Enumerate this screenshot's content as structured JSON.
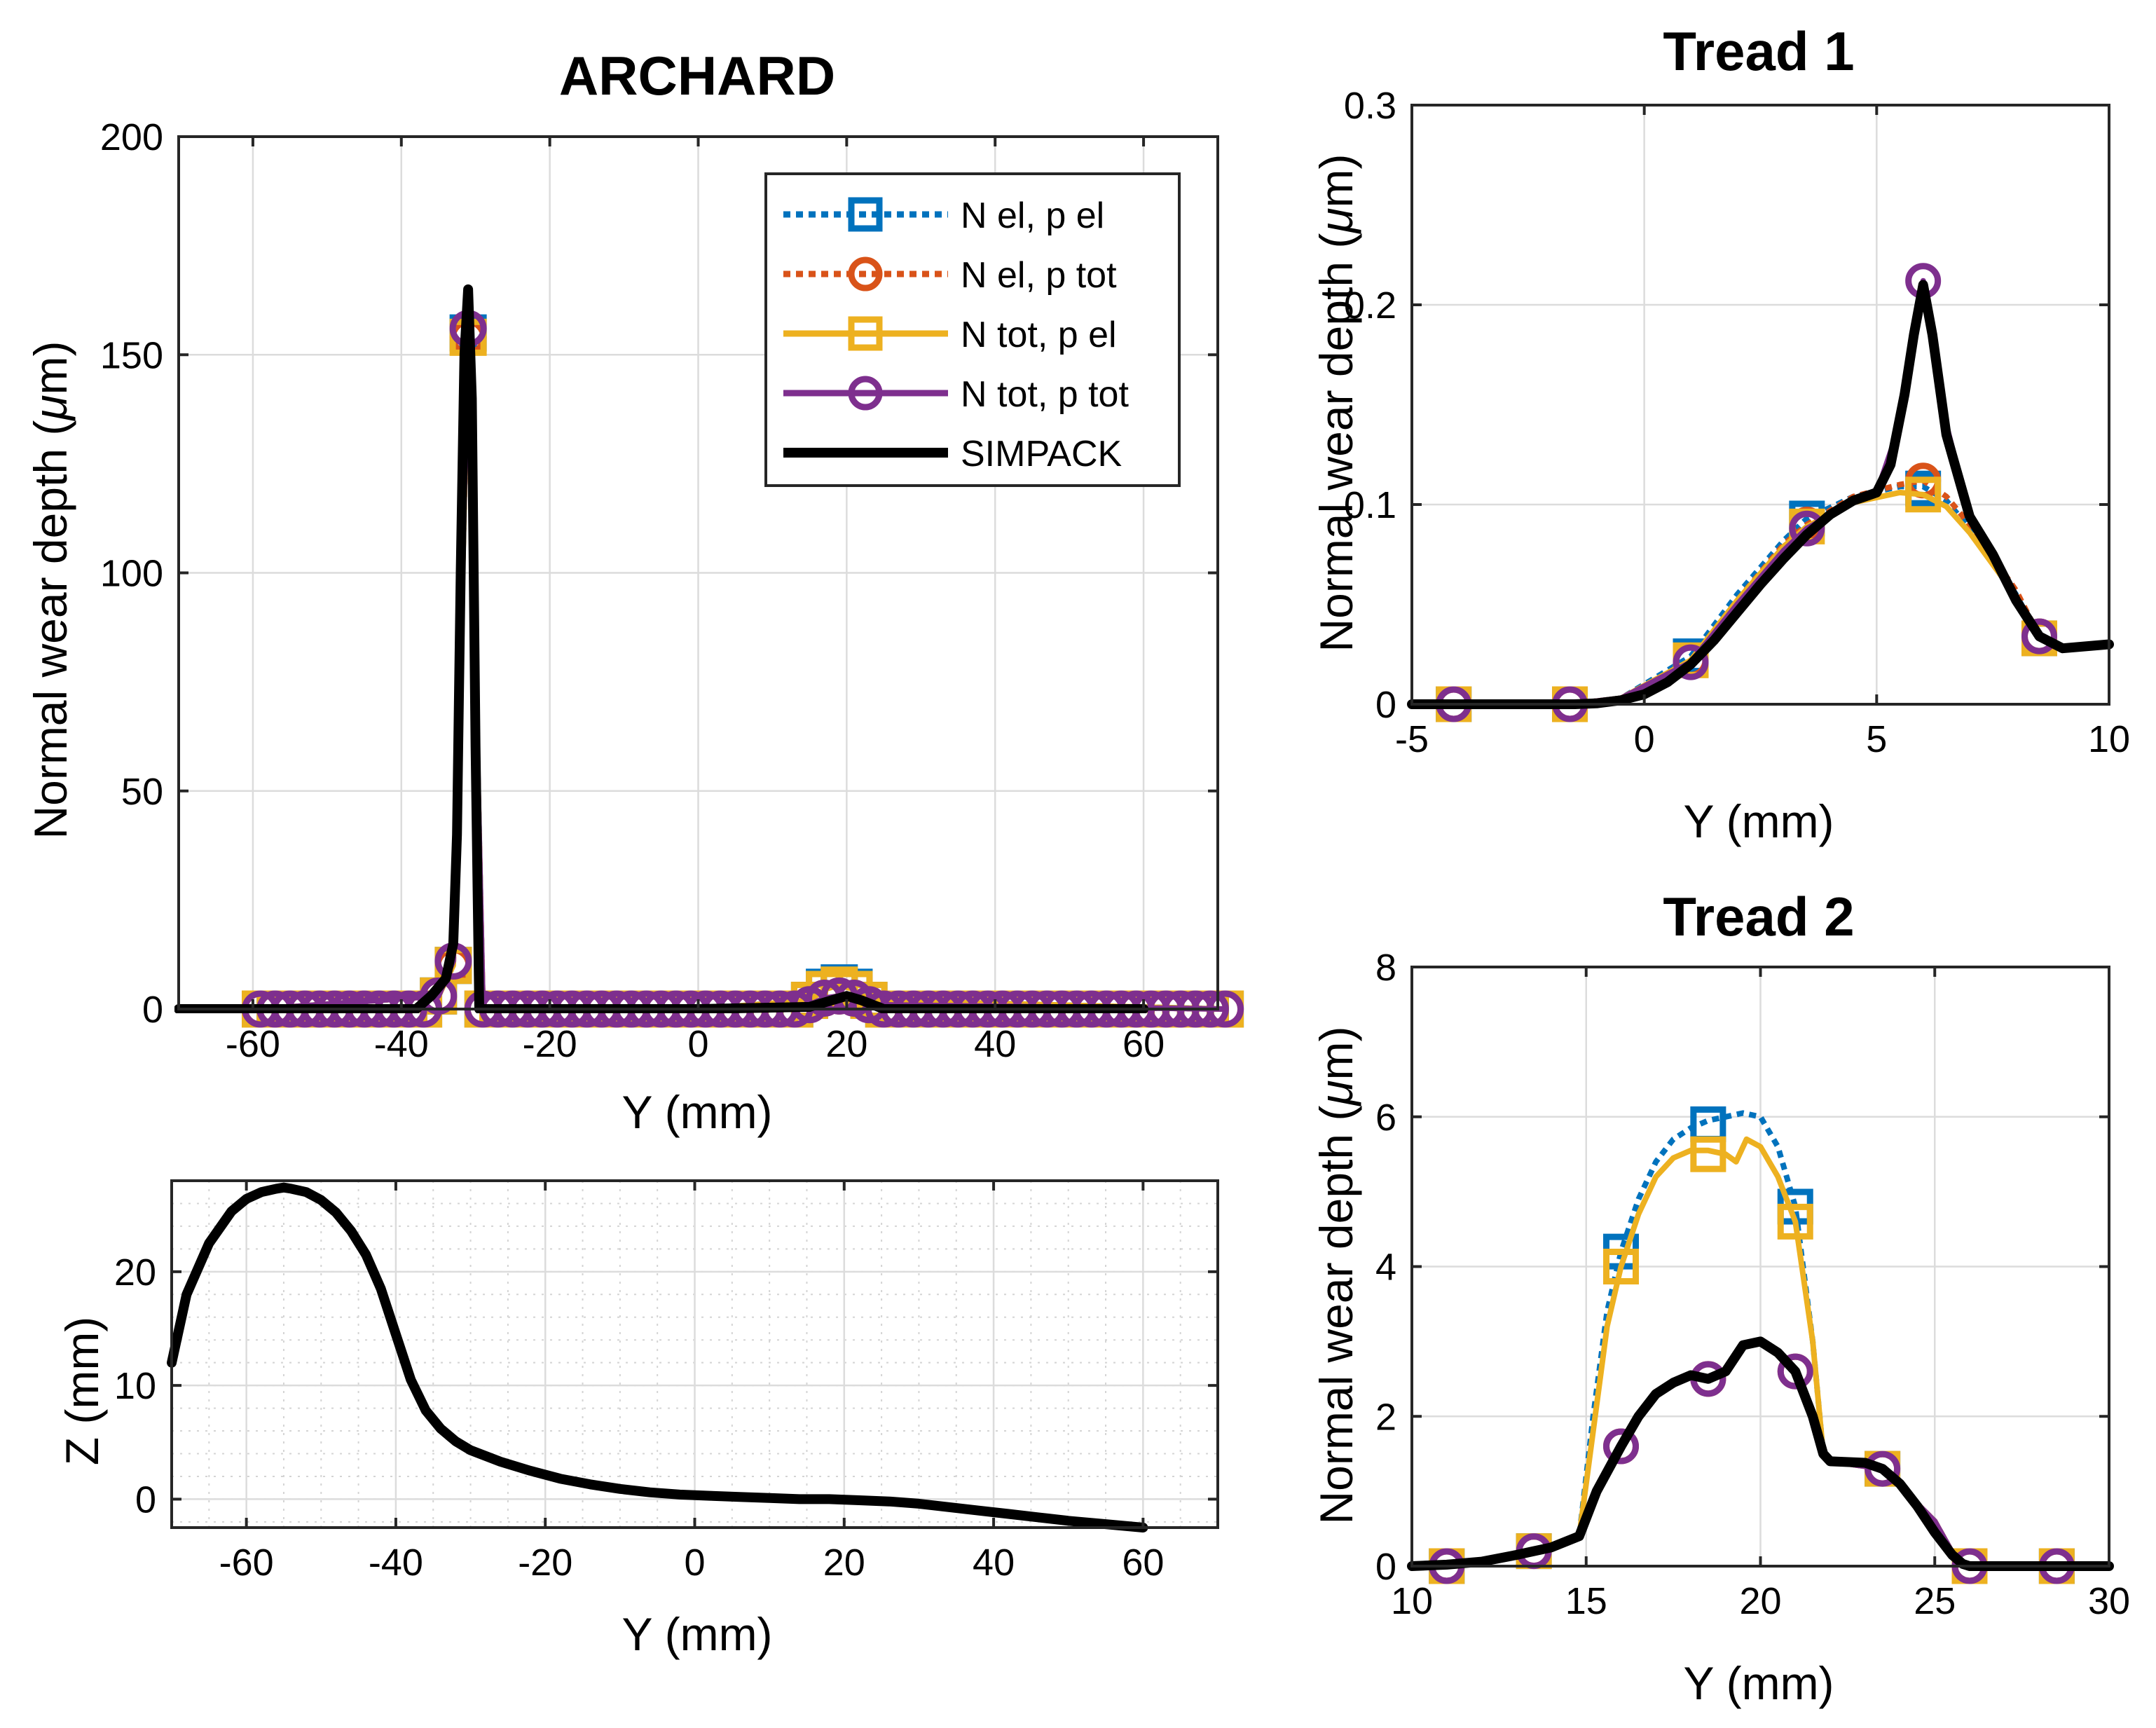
{
  "chart_data": [
    {
      "id": "archard",
      "type": "line",
      "title": "ARCHARD",
      "xlabel": "Y (mm)",
      "ylabel_prefix": "Normal wear depth (",
      "ylabel_symbol": "μ",
      "ylabel_suffix": "m)",
      "xlim": [
        -70,
        70
      ],
      "ylim": [
        0,
        200
      ],
      "xticks": [
        -60,
        -40,
        -20,
        0,
        20,
        40,
        60
      ],
      "yticks": [
        0,
        50,
        100,
        150,
        200
      ],
      "grid": true,
      "legend": {
        "position": "top-right",
        "entries": [
          "N el, p el",
          "N el, p tot",
          "N tot, p el",
          "N tot, p tot",
          "SIMPACK"
        ]
      },
      "series": [
        {
          "name": "N el, p el",
          "color": "#0072BD",
          "style": "dotted",
          "marker": "square",
          "x": [
            -59,
            -35,
            -33,
            -31,
            -29,
            0,
            15,
            17,
            19,
            21,
            23,
            71
          ],
          "y": [
            0,
            3,
            10,
            155,
            0,
            0,
            2,
            5,
            6,
            5,
            2,
            0
          ]
        },
        {
          "name": "N el, p tot",
          "color": "#D95319",
          "style": "dotted",
          "marker": "circle",
          "x": [
            -59,
            -35,
            -33,
            -31,
            -29,
            0,
            15,
            17,
            19,
            21,
            23,
            71
          ],
          "y": [
            0,
            3,
            10,
            154,
            0,
            0,
            1,
            2.5,
            3,
            2.5,
            1,
            0
          ]
        },
        {
          "name": "N tot, p el",
          "color": "#EDB120",
          "style": "solid",
          "marker": "square",
          "x": [
            -59,
            -35,
            -33,
            -31,
            -29,
            0,
            15,
            17,
            19,
            21,
            23,
            71
          ],
          "y": [
            0,
            3,
            10,
            154,
            0,
            0,
            2,
            4.5,
            5.5,
            4.5,
            2,
            0
          ]
        },
        {
          "name": "N tot, p tot",
          "color": "#7E2F8E",
          "style": "solid",
          "marker": "circle",
          "x": [
            -59,
            -35,
            -33,
            -31,
            -29,
            0,
            15,
            17,
            19,
            21,
            23,
            71
          ],
          "y": [
            0,
            3,
            11,
            156,
            0,
            0,
            1,
            2.5,
            3,
            2.5,
            1,
            0
          ]
        },
        {
          "name": "SIMPACK",
          "color": "#000000",
          "style": "solid",
          "marker": "none",
          "x": [
            -70,
            -38,
            -36,
            -34,
            -33,
            -32.5,
            -32,
            -31.5,
            -31,
            -30.5,
            -30,
            -29.5,
            -29,
            -20,
            0,
            15,
            18,
            20,
            22,
            25,
            60
          ],
          "y": [
            0,
            0,
            3,
            7,
            15,
            40,
            100,
            150,
            165,
            140,
            60,
            0,
            0,
            0,
            0,
            0.5,
            2,
            3,
            2,
            0,
            0
          ]
        }
      ]
    },
    {
      "id": "profile",
      "type": "line",
      "xlabel": "Y (mm)",
      "ylabel": "Z (mm)",
      "xlim": [
        -70,
        70
      ],
      "ylim": [
        -2.5,
        28
      ],
      "xticks": [
        -60,
        -40,
        -20,
        0,
        20,
        40,
        60
      ],
      "yticks": [
        0,
        10,
        20
      ],
      "grid": true,
      "series": [
        {
          "name": "profile",
          "color": "#000000",
          "style": "solid",
          "x": [
            -70,
            -68,
            -65,
            -62,
            -60,
            -58,
            -56,
            -55,
            -54,
            -52,
            -50,
            -48,
            -46,
            -44,
            -42,
            -40,
            -38,
            -36,
            -34,
            -32,
            -30,
            -26,
            -22,
            -18,
            -14,
            -10,
            -6,
            -2,
            2,
            6,
            10,
            14,
            18,
            22,
            26,
            30,
            34,
            38,
            42,
            46,
            50,
            55,
            60
          ],
          "y": [
            12,
            18,
            22.5,
            25.3,
            26.4,
            27.0,
            27.3,
            27.4,
            27.3,
            27.0,
            26.3,
            25.2,
            23.6,
            21.5,
            18.5,
            14.5,
            10.5,
            7.8,
            6.2,
            5.1,
            4.3,
            3.3,
            2.5,
            1.8,
            1.3,
            0.9,
            0.6,
            0.4,
            0.3,
            0.2,
            0.1,
            0.0,
            0.0,
            -0.1,
            -0.2,
            -0.4,
            -0.7,
            -1.0,
            -1.3,
            -1.6,
            -1.9,
            -2.2,
            -2.5
          ]
        }
      ]
    },
    {
      "id": "tread1",
      "type": "line",
      "title": "Tread 1",
      "xlabel": "Y (mm)",
      "ylabel_prefix": "Normal wear depth (",
      "ylabel_symbol": "μ",
      "ylabel_suffix": "m)",
      "xlim": [
        -5,
        10
      ],
      "ylim": [
        0,
        0.3
      ],
      "xticks": [
        -5,
        0,
        5,
        10
      ],
      "yticks": [
        0,
        0.1,
        0.2,
        0.3
      ],
      "grid": true,
      "series": [
        {
          "name": "N el, p el",
          "color": "#0072BD",
          "style": "dotted",
          "marker": "square",
          "x": [
            -4.1,
            -1.6,
            1,
            3.5,
            6,
            8.5
          ],
          "y": [
            0,
            0,
            0.024,
            0.093,
            0.108,
            0.033
          ],
          "line_x": [
            -5,
            -1.6,
            -0.5,
            1,
            2,
            3,
            3.5,
            4.5,
            5.5,
            6,
            6.5,
            7,
            8,
            8.5
          ],
          "line_y": [
            0,
            0,
            0.003,
            0.024,
            0.055,
            0.082,
            0.093,
            0.104,
            0.109,
            0.109,
            0.102,
            0.088,
            0.055,
            0.033
          ]
        },
        {
          "name": "N el, p tot",
          "color": "#D95319",
          "style": "dotted",
          "marker": "circle",
          "x": [
            -4.1,
            -1.6,
            1,
            3.5,
            6,
            8.5
          ],
          "y": [
            0,
            0,
            0.022,
            0.09,
            0.112,
            0.034
          ],
          "line_x": [
            -5,
            -1.6,
            -0.5,
            1,
            2,
            3,
            3.5,
            4.5,
            5.5,
            6,
            6.5,
            7,
            8,
            8.5
          ],
          "line_y": [
            0,
            0,
            0.003,
            0.022,
            0.052,
            0.08,
            0.09,
            0.104,
            0.11,
            0.112,
            0.104,
            0.09,
            0.057,
            0.034
          ]
        },
        {
          "name": "N tot, p el",
          "color": "#EDB120",
          "style": "solid",
          "marker": "square",
          "x": [
            -4.1,
            -1.6,
            1,
            3.5,
            6,
            8.5
          ],
          "y": [
            0,
            0,
            0.022,
            0.089,
            0.105,
            0.033
          ],
          "line_x": [
            -5,
            -1.6,
            -0.5,
            1,
            2,
            3,
            3.5,
            4.5,
            5.5,
            6,
            6.5,
            7,
            8,
            8.5
          ],
          "line_y": [
            0,
            0,
            0.003,
            0.022,
            0.052,
            0.079,
            0.089,
            0.101,
            0.106,
            0.105,
            0.099,
            0.086,
            0.054,
            0.033
          ]
        },
        {
          "name": "N tot, p tot",
          "color": "#7E2F8E",
          "style": "solid",
          "marker": "circle",
          "x": [
            -4.1,
            -1.6,
            1,
            3.5,
            6,
            8.5
          ],
          "y": [
            0,
            0,
            0.021,
            0.088,
            0.212,
            0.034
          ],
          "line_x": [
            -5,
            -1.6,
            -0.5,
            1,
            2,
            3,
            3.5,
            4.5,
            5,
            5.5,
            6,
            6.5,
            7,
            7.5,
            8,
            8.5
          ],
          "line_y": [
            0,
            0,
            0.003,
            0.021,
            0.05,
            0.077,
            0.088,
            0.101,
            0.106,
            0.14,
            0.212,
            0.14,
            0.094,
            0.075,
            0.052,
            0.034
          ]
        },
        {
          "name": "SIMPACK",
          "color": "#000000",
          "style": "solid",
          "marker": "none",
          "line_x": [
            -5,
            -1.5,
            -1,
            -0.5,
            0,
            0.5,
            1,
            1.5,
            2,
            2.5,
            3,
            3.5,
            4,
            4.5,
            5,
            5.3,
            5.6,
            5.8,
            6,
            6.2,
            6.5,
            7,
            7.5,
            8,
            8.5,
            9,
            10
          ],
          "line_y": [
            0,
            0,
            0.0005,
            0.002,
            0.005,
            0.011,
            0.02,
            0.032,
            0.046,
            0.06,
            0.073,
            0.085,
            0.095,
            0.102,
            0.106,
            0.12,
            0.155,
            0.185,
            0.21,
            0.185,
            0.135,
            0.094,
            0.075,
            0.052,
            0.034,
            0.028,
            0.03
          ]
        }
      ]
    },
    {
      "id": "tread2",
      "type": "line",
      "title": "Tread 2",
      "xlabel": "Y (mm)",
      "ylabel_prefix": "Normal wear depth (",
      "ylabel_symbol": "μ",
      "ylabel_suffix": "m)",
      "xlim": [
        10,
        30
      ],
      "ylim": [
        0,
        8
      ],
      "xticks": [
        10,
        15,
        20,
        25,
        30
      ],
      "yticks": [
        0,
        2,
        4,
        6,
        8
      ],
      "grid": true,
      "series": [
        {
          "name": "N el, p el",
          "color": "#0072BD",
          "style": "dotted",
          "marker": "square",
          "x": [
            11,
            13.5,
            16,
            18.5,
            21,
            23.5,
            26,
            28.5
          ],
          "y": [
            0,
            0.2,
            4.2,
            5.9,
            4.8,
            1.3,
            0,
            0
          ],
          "line_x": [
            11,
            13.5,
            14.8,
            15.2,
            15.6,
            16,
            16.5,
            17,
            17.5,
            18,
            18.5,
            19,
            19.5,
            20,
            20.5,
            21,
            21.5,
            21.8,
            22,
            23.5,
            25,
            25.6,
            26,
            30
          ],
          "line_y": [
            0,
            0.2,
            0.4,
            2.0,
            3.4,
            4.2,
            4.9,
            5.4,
            5.7,
            5.85,
            5.95,
            6.0,
            6.05,
            6.0,
            5.6,
            4.8,
            3.0,
            1.5,
            1.4,
            1.3,
            0.6,
            0.1,
            0,
            0
          ]
        },
        {
          "name": "N el, p tot",
          "color": "#D95319",
          "style": "dotted",
          "marker": "circle",
          "x": [
            11,
            13.5,
            16,
            18.5,
            21,
            23.5,
            26,
            28.5
          ],
          "y": [
            0,
            0.2,
            1.6,
            2.5,
            2.6,
            1.3,
            0,
            0
          ],
          "line_x": [
            11,
            13.5,
            14.8,
            15.3,
            16,
            16.5,
            17,
            17.5,
            18,
            18.5,
            19,
            19.5,
            20,
            20.5,
            21,
            21.5,
            21.8,
            22,
            23.5,
            25,
            25.6,
            26,
            30
          ],
          "line_y": [
            0,
            0.2,
            0.4,
            1.0,
            1.6,
            2.0,
            2.3,
            2.45,
            2.55,
            2.5,
            2.6,
            2.95,
            3.0,
            2.85,
            2.6,
            2.0,
            1.5,
            1.4,
            1.3,
            0.6,
            0.1,
            0,
            0
          ]
        },
        {
          "name": "N tot, p el",
          "color": "#EDB120",
          "style": "solid",
          "marker": "square",
          "x": [
            11,
            13.5,
            16,
            18.5,
            21,
            23.5,
            26,
            28.5
          ],
          "y": [
            0,
            0.2,
            4.0,
            5.5,
            4.6,
            1.3,
            0,
            0
          ],
          "line_x": [
            11,
            13.5,
            14.8,
            15.2,
            15.6,
            16,
            16.5,
            17,
            17.5,
            18,
            18.5,
            19,
            19.3,
            19.6,
            20,
            20.5,
            21,
            21.5,
            21.8,
            22,
            23.5,
            25,
            25.6,
            26,
            30
          ],
          "line_y": [
            0,
            0.2,
            0.4,
            1.8,
            3.2,
            4.0,
            4.7,
            5.2,
            5.45,
            5.55,
            5.55,
            5.5,
            5.4,
            5.7,
            5.6,
            5.2,
            4.6,
            3.0,
            1.5,
            1.4,
            1.3,
            0.6,
            0.1,
            0,
            0
          ]
        },
        {
          "name": "N tot, p tot",
          "color": "#7E2F8E",
          "style": "solid",
          "marker": "circle",
          "x": [
            11,
            13.5,
            16,
            18.5,
            21,
            23.5,
            26,
            28.5
          ],
          "y": [
            0,
            0.2,
            1.6,
            2.5,
            2.6,
            1.3,
            0,
            0
          ],
          "line_x": [
            11,
            13.5,
            14.8,
            15.3,
            16,
            16.5,
            17,
            17.5,
            18,
            18.5,
            19,
            19.5,
            20,
            20.5,
            21,
            21.5,
            21.8,
            22,
            23.5,
            25,
            25.6,
            26,
            30
          ],
          "line_y": [
            0,
            0.2,
            0.4,
            1.0,
            1.6,
            2.0,
            2.3,
            2.45,
            2.55,
            2.5,
            2.6,
            2.95,
            3.0,
            2.85,
            2.6,
            2.0,
            1.5,
            1.4,
            1.3,
            0.6,
            0.1,
            0,
            0
          ]
        },
        {
          "name": "SIMPACK",
          "color": "#000000",
          "style": "solid",
          "marker": "none",
          "line_x": [
            10,
            11,
            12,
            13,
            13.5,
            14,
            14.8,
            15.3,
            16,
            16.5,
            17,
            17.5,
            18,
            18.5,
            19,
            19.5,
            20,
            20.5,
            21,
            21.5,
            21.8,
            22,
            23,
            23.5,
            24,
            24.5,
            25,
            25.5,
            25.8,
            26,
            30
          ],
          "line_y": [
            0,
            0.02,
            0.06,
            0.15,
            0.2,
            0.25,
            0.4,
            1.0,
            1.6,
            2.0,
            2.3,
            2.45,
            2.55,
            2.5,
            2.6,
            2.95,
            3.0,
            2.85,
            2.6,
            2.0,
            1.5,
            1.4,
            1.38,
            1.3,
            1.1,
            0.8,
            0.45,
            0.15,
            0.03,
            0,
            0
          ]
        }
      ]
    }
  ]
}
